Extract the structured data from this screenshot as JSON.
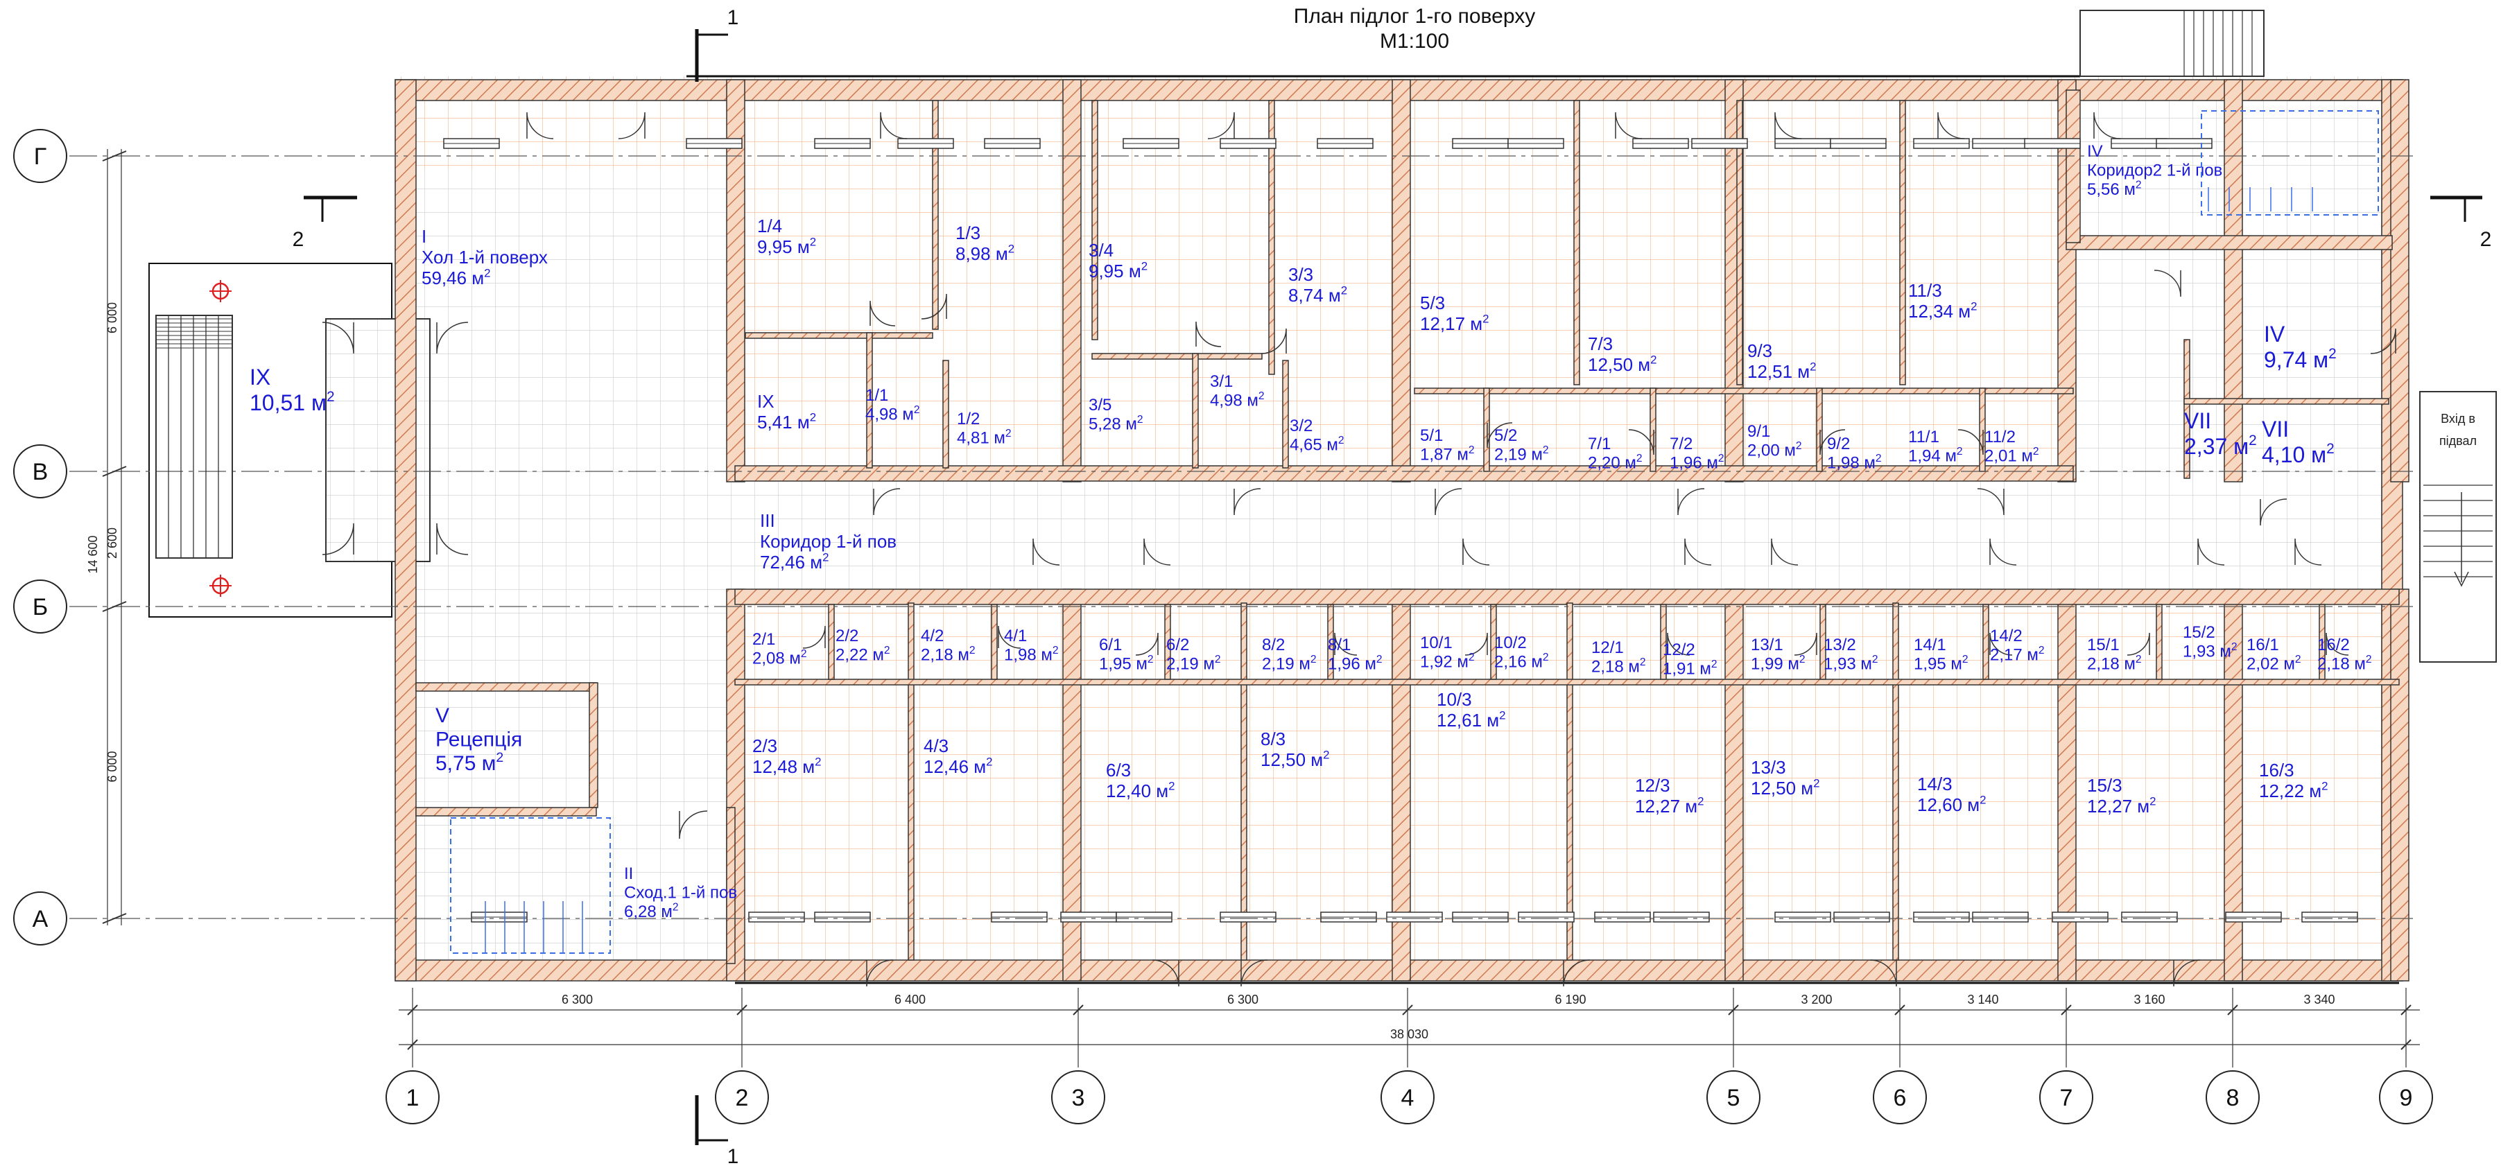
{
  "title": {
    "line1": "План підлог 1-го поверху",
    "line2": "М1:100"
  },
  "section_marks": {
    "s1": "1",
    "s2": "2"
  },
  "axes": {
    "numbers": [
      "1",
      "2",
      "3",
      "4",
      "5",
      "6",
      "7",
      "8",
      "9"
    ],
    "letters": [
      "Г",
      "В",
      "Б",
      "А"
    ]
  },
  "dimensions": {
    "spans": [
      "6 300",
      "6 400",
      "6 300",
      "6 190",
      "3 200",
      "3 140",
      "3 160",
      "3 340"
    ],
    "total": "38 030",
    "vertical": [
      "6 000",
      "2 600",
      "6 000"
    ],
    "vertical_total": "14 600"
  },
  "rooms": [
    {
      "lines": [
        "I",
        "Хол 1-й поверх"
      ],
      "area": "59,46"
    },
    {
      "lines": [
        "IX"
      ],
      "area": "10,51"
    },
    {
      "lines": [
        "1/4"
      ],
      "area": "9,95"
    },
    {
      "lines": [
        "1/3"
      ],
      "area": "8,98"
    },
    {
      "lines": [
        "3/4"
      ],
      "area": "9,95"
    },
    {
      "lines": [
        "3/3"
      ],
      "area": "8,74"
    },
    {
      "lines": [
        "IX"
      ],
      "area": "5,41"
    },
    {
      "lines": [
        "1/1"
      ],
      "area": "4,98"
    },
    {
      "lines": [
        "1/2"
      ],
      "area": "4,81"
    },
    {
      "lines": [
        "3/5"
      ],
      "area": "5,28"
    },
    {
      "lines": [
        "3/1"
      ],
      "area": "4,98"
    },
    {
      "lines": [
        "3/2"
      ],
      "area": "4,65"
    },
    {
      "lines": [
        "5/3"
      ],
      "area": "12,17"
    },
    {
      "lines": [
        "7/3"
      ],
      "area": "12,50"
    },
    {
      "lines": [
        "9/3"
      ],
      "area": "12,51"
    },
    {
      "lines": [
        "11/3"
      ],
      "area": "12,34"
    },
    {
      "lines": [
        "5/1"
      ],
      "area": "1,87"
    },
    {
      "lines": [
        "5/2"
      ],
      "area": "2,19"
    },
    {
      "lines": [
        "7/1"
      ],
      "area": "2,20"
    },
    {
      "lines": [
        "7/2"
      ],
      "area": "1,96"
    },
    {
      "lines": [
        "9/1"
      ],
      "area": "2,00"
    },
    {
      "lines": [
        "9/2"
      ],
      "area": "1,98"
    },
    {
      "lines": [
        "11/1"
      ],
      "area": "1,94"
    },
    {
      "lines": [
        "11/2"
      ],
      "area": "2,01"
    },
    {
      "lines": [
        "IV",
        "Коридор2 1-й пов"
      ],
      "area": "5,56"
    },
    {
      "lines": [
        "IV"
      ],
      "area": "9,74"
    },
    {
      "lines": [
        "VII"
      ],
      "area": "2,37"
    },
    {
      "lines": [
        "VII"
      ],
      "area": "4,10"
    },
    {
      "lines": [
        "III",
        "Коридор 1-й пов"
      ],
      "area": "72,46"
    },
    {
      "lines": [
        "2/1"
      ],
      "area": "2,08"
    },
    {
      "lines": [
        "2/2"
      ],
      "area": "2,22"
    },
    {
      "lines": [
        "4/2"
      ],
      "area": "2,18"
    },
    {
      "lines": [
        "4/1"
      ],
      "area": "1,98"
    },
    {
      "lines": [
        "6/1"
      ],
      "area": "1,95"
    },
    {
      "lines": [
        "6/2"
      ],
      "area": "2,19"
    },
    {
      "lines": [
        "8/2"
      ],
      "area": "2,19"
    },
    {
      "lines": [
        "8/1"
      ],
      "area": "1,96"
    },
    {
      "lines": [
        "10/1"
      ],
      "area": "1,92"
    },
    {
      "lines": [
        "10/2"
      ],
      "area": "2,16"
    },
    {
      "lines": [
        "12/1"
      ],
      "area": "2,18"
    },
    {
      "lines": [
        "12/2"
      ],
      "area": "1,91"
    },
    {
      "lines": [
        "13/1"
      ],
      "area": "1,99"
    },
    {
      "lines": [
        "13/2"
      ],
      "area": "1,93"
    },
    {
      "lines": [
        "14/1"
      ],
      "area": "1,95"
    },
    {
      "lines": [
        "14/2"
      ],
      "area": "2,17"
    },
    {
      "lines": [
        "15/1"
      ],
      "area": "2,18"
    },
    {
      "lines": [
        "15/2"
      ],
      "area": "1,93"
    },
    {
      "lines": [
        "16/1"
      ],
      "area": "2,02"
    },
    {
      "lines": [
        "16/2"
      ],
      "area": "2,18"
    },
    {
      "lines": [
        "V",
        "Рецепція"
      ],
      "area": "5,75"
    },
    {
      "lines": [
        "II",
        "Сход.1 1-й пов"
      ],
      "area": "6,28"
    },
    {
      "lines": [
        "2/3"
      ],
      "area": "12,48"
    },
    {
      "lines": [
        "4/3"
      ],
      "area": "12,46"
    },
    {
      "lines": [
        "6/3"
      ],
      "area": "12,40"
    },
    {
      "lines": [
        "8/3"
      ],
      "area": "12,50"
    },
    {
      "lines": [
        "10/3"
      ],
      "area": "12,61"
    },
    {
      "lines": [
        "12/3"
      ],
      "area": "12,27"
    },
    {
      "lines": [
        "13/3"
      ],
      "area": "12,50"
    },
    {
      "lines": [
        "14/3"
      ],
      "area": "12,60"
    },
    {
      "lines": [
        "15/3"
      ],
      "area": "12,27"
    },
    {
      "lines": [
        "16/3"
      ],
      "area": "12,22"
    }
  ],
  "area_unit": "м",
  "area_unit_power": "2",
  "basement_entrance": [
    "Вхід в",
    "підвал"
  ],
  "colors": {
    "room_text": "#1a1ad6",
    "wall_fill": "#f7d8c3",
    "wall_hatch": "#d07a50",
    "room_tile": "#f2b48c",
    "corridor_tile": "#c8ccd0",
    "stair_blue": "#3a6ee8"
  }
}
